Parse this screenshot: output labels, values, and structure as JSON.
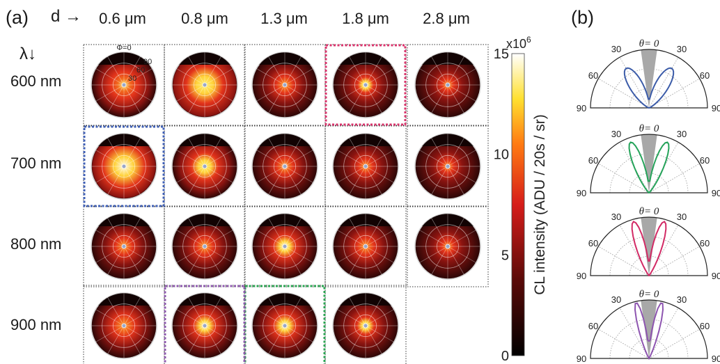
{
  "panel_a": {
    "tag": "(a)",
    "d_axis": "d",
    "d_arrow": "→",
    "lambda_axis": "λ",
    "lambda_arrow": "↓",
    "columns": [
      "0.6 μm",
      "0.8 μm",
      "1.3 μm",
      "1.8 μm",
      "2.8 μm"
    ],
    "rows": [
      "600 nm",
      "700 nm",
      "800 nm",
      "900 nm"
    ],
    "polar_labels": {
      "phi": "Φ=0",
      "r90": "90",
      "r60": "60",
      "r30": "30"
    },
    "colorbar": {
      "title": "CL intensity (ADU / 20s / sr)",
      "multiplier_base": "x10",
      "multiplier_exp": "6",
      "ticks": [
        "15",
        "10",
        "5",
        "0"
      ],
      "tick_values": [
        15,
        10,
        5,
        0
      ],
      "range": [
        0,
        15
      ]
    },
    "highlights": [
      {
        "row": 0,
        "col": 3,
        "color": "#d8336b"
      },
      {
        "row": 1,
        "col": 0,
        "color": "#3f5fb5"
      },
      {
        "row": 3,
        "col": 2,
        "color": "#2aa451"
      },
      {
        "row": 3,
        "col": 1,
        "color": "#8d59ad"
      }
    ]
  },
  "panel_b": {
    "tag": "(b)",
    "theta_label": "θ= 0",
    "angle_labels": {
      "a30": "30",
      "a60": "60",
      "a90": "90"
    },
    "plot_colors": [
      "#3b5ba8",
      "#25a35a",
      "#d22a65",
      "#8e55b0"
    ]
  }
}
